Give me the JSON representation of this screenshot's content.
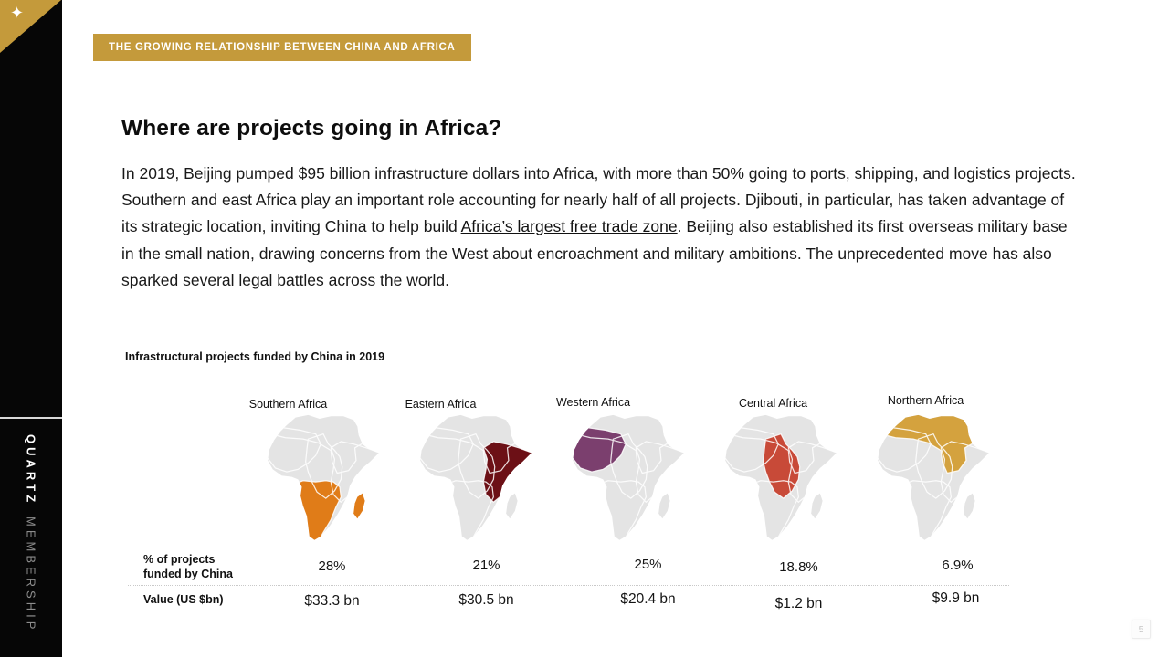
{
  "slide": {
    "kicker": "THE GROWING RELATIONSHIP BETWEEN CHINA AND AFRICA",
    "title": "Where are projects going in Africa?",
    "paragraph": {
      "text_before": "In 2019, Beijing pumped $95 billion infrastructure dollars into Africa, with more than 50% going to ports, shipping, and logistics projects. Southern and east Africa play an important role accounting for nearly half of all projects. Djibouti, in particular, has taken advantage of its strategic location, inviting China to help build ",
      "link_text": "Africa’s largest free trade zone",
      "text_after": ". Beijing also established its first overseas military base in the small nation, drawing concerns from the West about encroachment and military ambitions. The unprecedented move has also sparked several legal battles across the world."
    },
    "page_number": "5"
  },
  "sidebar": {
    "brand_primary": "QUARTZ",
    "brand_secondary": "MEMBERSHIP"
  },
  "colors": {
    "accent_gold": "#C49A3B"
  },
  "chart_data": {
    "type": "table",
    "title": "Infrastructural projects funded by China in 2019",
    "categories": [
      "Southern Africa",
      "Eastern Africa",
      "Western Africa",
      "Central Africa",
      "Northern Africa"
    ],
    "series": [
      {
        "name": "% of projects funded by China",
        "unit": "%",
        "values": [
          28,
          21,
          25,
          18.8,
          6.9
        ]
      },
      {
        "name": "Value (US $bn)",
        "unit": "US $bn",
        "values": [
          33.3,
          30.5,
          20.4,
          1.2,
          9.9
        ]
      }
    ],
    "row_labels": [
      "% of projects funded by China",
      "Value (US $bn)"
    ],
    "map_base_color": "#E4E4E4",
    "regions": [
      {
        "name": "Southern Africa",
        "key": "southern",
        "percent": "28%",
        "value": "$33.3 bn",
        "color": "#E07C18"
      },
      {
        "name": "Eastern Africa",
        "key": "eastern",
        "percent": "21%",
        "value": "$30.5 bn",
        "color": "#6C1016"
      },
      {
        "name": "Western Africa",
        "key": "western",
        "percent": "25%",
        "value": "$20.4 bn",
        "color": "#7B3F6E"
      },
      {
        "name": "Central Africa",
        "key": "central",
        "percent": "18.8%",
        "value": "$1.2 bn",
        "color": "#C84A38"
      },
      {
        "name": "Northern Africa",
        "key": "northern",
        "percent": "6.9%",
        "value": "$9.9 bn",
        "color": "#D4A23E"
      }
    ]
  }
}
